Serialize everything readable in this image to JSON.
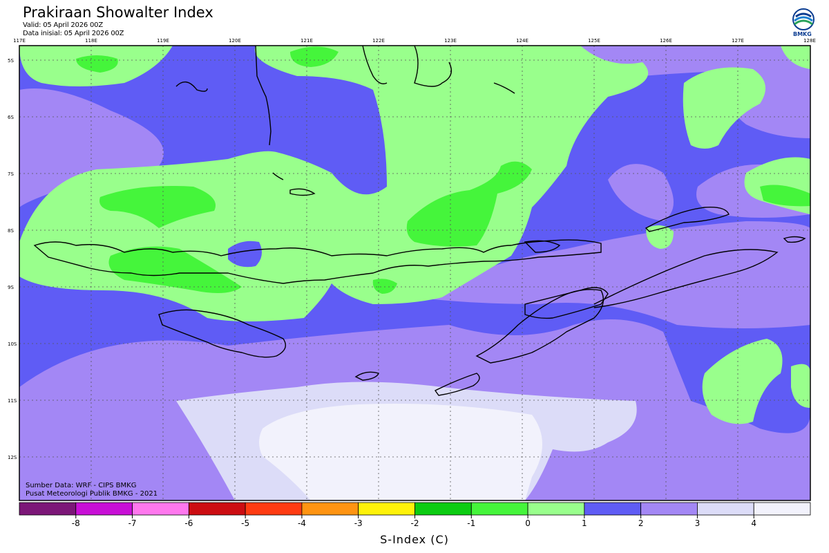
{
  "header": {
    "title": "Prakiraan Showalter Index",
    "valid": "Valid: 05 April 2026 00Z",
    "initial": "Data inisial: 05 April 2026 00Z",
    "logo_label": "BMKG"
  },
  "map": {
    "lon_labels": [
      "117E",
      "118E",
      "119E",
      "120E",
      "121E",
      "122E",
      "123E",
      "124E",
      "125E",
      "126E",
      "127E",
      "128E"
    ],
    "lat_labels": [
      "5S",
      "6S",
      "7S",
      "8S",
      "9S",
      "10S",
      "11S",
      "12S"
    ],
    "colors": {
      "green_light": "#99ff8c",
      "green_mid": "#45f53b",
      "blue": "#5f5cf5",
      "lavender": "#a387f5",
      "pale": "#dcdcf8",
      "paler": "#f2f2fc",
      "coast": "#000000"
    }
  },
  "credits": {
    "source": "Sumber Data: WRF - CIPS BMKG",
    "org": "Pusat Meteorologi Publik BMKG - 2021"
  },
  "legend": {
    "title": "S-Index (C)",
    "tick_labels": [
      "-8",
      "-7",
      "-6",
      "-5",
      "-4",
      "-3",
      "-2",
      "-1",
      "0",
      "1",
      "2",
      "3",
      "4"
    ],
    "colors": [
      "#7c1778",
      "#c80fd6",
      "#ff78ee",
      "#cc0d12",
      "#ff3b12",
      "#ff9412",
      "#fff20a",
      "#0ccc12",
      "#45f53b",
      "#99ff8c",
      "#5f5cf5",
      "#a387f5",
      "#dcdcf8",
      "#f2f2fc"
    ]
  }
}
